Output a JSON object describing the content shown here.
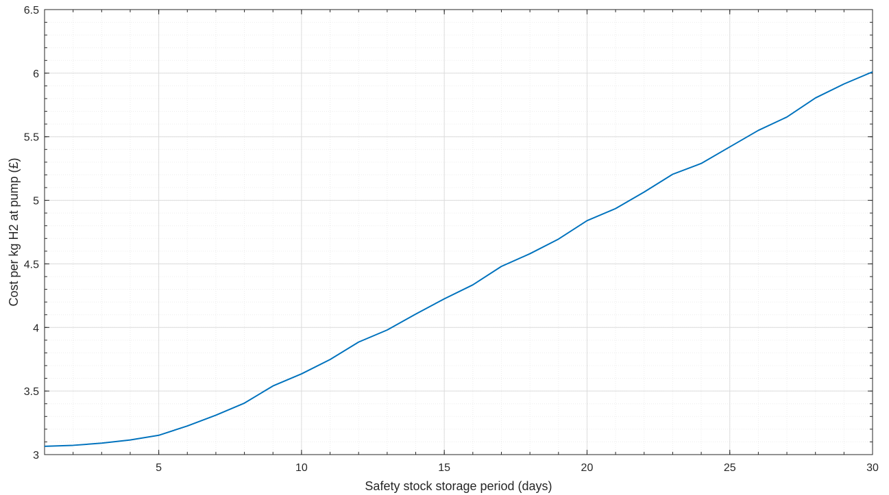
{
  "chart_data": {
    "type": "line",
    "xlabel": "Safety stock storage period (days)",
    "ylabel": "Cost per kg H2 at pump (£)",
    "xlim": [
      1,
      30
    ],
    "ylim": [
      3,
      6.5
    ],
    "x_ticks": [
      5,
      10,
      15,
      20,
      25,
      30
    ],
    "y_ticks": [
      3,
      3.5,
      4,
      4.5,
      5,
      5.5,
      6,
      6.5
    ],
    "x_tick_labels": [
      "5",
      "10",
      "15",
      "20",
      "25",
      "30"
    ],
    "y_tick_labels": [
      "3",
      "3.5",
      "4",
      "4.5",
      "5",
      "5.5",
      "6",
      "6.5"
    ],
    "grid": true,
    "minor_grid": true,
    "series": [
      {
        "color": "#0072bd",
        "x": [
          1,
          2,
          3,
          4,
          5,
          6,
          7,
          8,
          9,
          10,
          11,
          12,
          13,
          14,
          15,
          16,
          17,
          18,
          19,
          20,
          21,
          22,
          23,
          24,
          25,
          26,
          27,
          28,
          29,
          30
        ],
        "y": [
          3.065,
          3.073,
          3.09,
          3.115,
          3.152,
          3.225,
          3.31,
          3.405,
          3.54,
          3.635,
          3.748,
          3.885,
          3.98,
          4.105,
          4.225,
          4.335,
          4.48,
          4.58,
          4.695,
          4.84,
          4.935,
          5.065,
          5.205,
          5.29,
          5.42,
          5.55,
          5.655,
          5.805,
          5.915,
          6.01
        ]
      }
    ]
  }
}
